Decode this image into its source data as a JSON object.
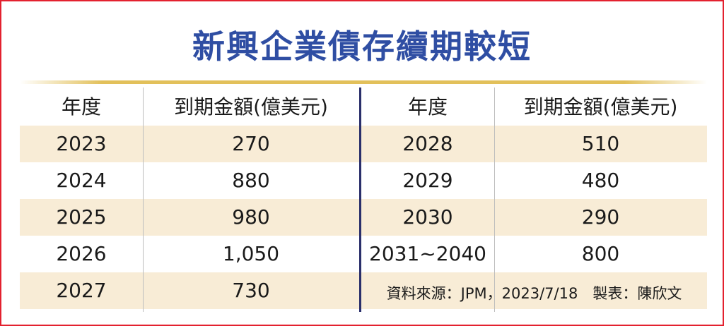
{
  "title": "新興企業債存續期較短",
  "table": {
    "left": {
      "header": [
        "年度",
        "到期金額(億美元)"
      ],
      "rows": [
        [
          "2023",
          "270"
        ],
        [
          "2024",
          "880"
        ],
        [
          "2025",
          "980"
        ],
        [
          "2026",
          "1,050"
        ],
        [
          "2027",
          "730"
        ]
      ]
    },
    "right": {
      "header": [
        "年度",
        "到期金額(億美元)"
      ],
      "rows": [
        [
          "2028",
          "510"
        ],
        [
          "2029",
          "480"
        ],
        [
          "2030",
          "290"
        ],
        [
          "2031~2040",
          "800"
        ]
      ]
    }
  },
  "source": "資料來源：JPM，2023/7/18　製表：陳欣文"
}
